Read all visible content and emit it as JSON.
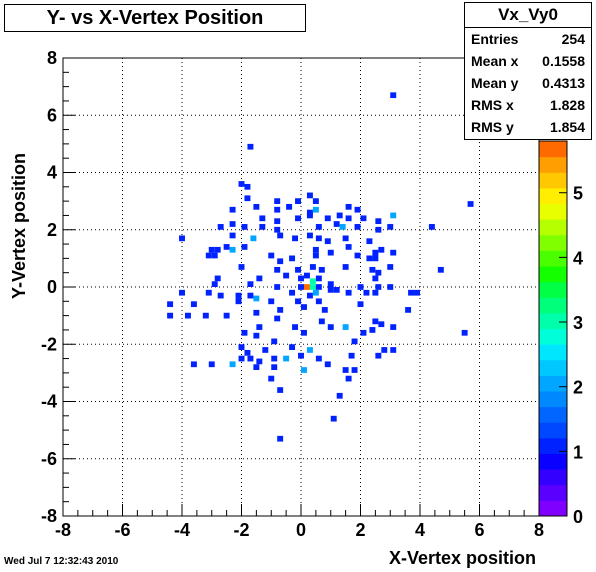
{
  "title": "Y- vs X-Vertex Position",
  "footer_timestamp": "Wed Jul  7 12:32:43 2010",
  "stats": {
    "name": "Vx_Vy0",
    "rows": [
      {
        "label": "Entries",
        "value": "254"
      },
      {
        "label": "Mean x",
        "value": "0.1558"
      },
      {
        "label": "Mean y",
        "value": "0.4313"
      },
      {
        "label": "RMS x",
        "value": "1.828"
      },
      {
        "label": "RMS y",
        "value": "1.854"
      }
    ]
  },
  "chart_data": {
    "type": "heatmap",
    "title": "Y- vs X-Vertex Position",
    "xlabel": "X-Vertex position",
    "ylabel": "Y-Vertex position",
    "xlim": [
      -8,
      8
    ],
    "ylim": [
      -8,
      8
    ],
    "bin_width": 0.2,
    "grid": true,
    "x_ticks": [
      "-8",
      "-6",
      "-4",
      "-2",
      "0",
      "2",
      "4",
      "6",
      "8"
    ],
    "y_ticks": [
      "-8",
      "-6",
      "-4",
      "-2",
      "0",
      "2",
      "4",
      "6",
      "8"
    ],
    "z_range": [
      0,
      5.8
    ],
    "z_ticks": [
      "0",
      "1",
      "2",
      "3",
      "4",
      "5"
    ],
    "palette": [
      "#7f00ff",
      "#5a00ff",
      "#3300ff",
      "#0a00ff",
      "#0022ff",
      "#0048ff",
      "#0066ff",
      "#0088ff",
      "#00a6ff",
      "#00c8ff",
      "#00e6ff",
      "#00ffd9",
      "#00ffab",
      "#00ff7a",
      "#00ff45",
      "#14ff00",
      "#4aff00",
      "#80ff00",
      "#b6ff00",
      "#e8ff00",
      "#ffee00",
      "#ffc800",
      "#ff9e00",
      "#ff6a00"
    ],
    "bins": [
      [
        3.1,
        6.7,
        1
      ],
      [
        -1.7,
        4.9,
        1
      ],
      [
        -2.0,
        3.6,
        1
      ],
      [
        -1.8,
        3.5,
        1
      ],
      [
        -1.8,
        3.1,
        1
      ],
      [
        -0.8,
        3.0,
        1
      ],
      [
        0.3,
        3.2,
        1
      ],
      [
        -0.1,
        3.0,
        1
      ],
      [
        0.5,
        3.0,
        1
      ],
      [
        5.7,
        2.9,
        1
      ],
      [
        -2.3,
        2.7,
        1
      ],
      [
        -1.5,
        2.8,
        1
      ],
      [
        -0.8,
        2.7,
        1
      ],
      [
        -0.4,
        2.8,
        1
      ],
      [
        0.3,
        2.6,
        1
      ],
      [
        0.5,
        2.7,
        2
      ],
      [
        1.6,
        2.8,
        1
      ],
      [
        1.9,
        2.7,
        1
      ],
      [
        -1.3,
        2.4,
        1
      ],
      [
        -0.8,
        2.3,
        1
      ],
      [
        -0.1,
        2.4,
        1
      ],
      [
        0.3,
        2.5,
        1
      ],
      [
        0.9,
        2.4,
        1
      ],
      [
        1.3,
        2.5,
        1
      ],
      [
        1.6,
        2.4,
        1
      ],
      [
        2.1,
        2.4,
        1
      ],
      [
        2.6,
        2.3,
        1
      ],
      [
        3.1,
        2.5,
        2
      ],
      [
        -2.7,
        2.1,
        1
      ],
      [
        -2.3,
        2.2,
        1
      ],
      [
        -1.9,
        2.1,
        1
      ],
      [
        -1.3,
        2.1,
        1
      ],
      [
        -0.8,
        2.0,
        1
      ],
      [
        0.6,
        2.1,
        1
      ],
      [
        1.2,
        2.2,
        1
      ],
      [
        1.4,
        2.1,
        2
      ],
      [
        1.9,
        2.1,
        1
      ],
      [
        2.6,
        2.0,
        1
      ],
      [
        3.0,
        2.1,
        1
      ],
      [
        4.4,
        2.1,
        1
      ],
      [
        -4.0,
        1.7,
        1
      ],
      [
        -2.3,
        1.8,
        1
      ],
      [
        -1.6,
        1.7,
        2
      ],
      [
        -0.7,
        1.8,
        1
      ],
      [
        -0.2,
        1.7,
        1
      ],
      [
        0.3,
        1.8,
        1
      ],
      [
        0.6,
        1.7,
        1
      ],
      [
        0.9,
        1.6,
        1
      ],
      [
        1.5,
        1.7,
        1
      ],
      [
        2.3,
        1.6,
        1
      ],
      [
        -3.0,
        1.3,
        1
      ],
      [
        -2.8,
        1.3,
        1
      ],
      [
        -2.5,
        1.4,
        1
      ],
      [
        -2.3,
        1.3,
        2
      ],
      [
        -1.9,
        1.4,
        1
      ],
      [
        0.5,
        1.3,
        1
      ],
      [
        1.0,
        1.2,
        1
      ],
      [
        1.6,
        1.4,
        1
      ],
      [
        2.5,
        1.2,
        1
      ],
      [
        2.7,
        1.3,
        1
      ],
      [
        3.1,
        1.2,
        1
      ],
      [
        -3.1,
        1.1,
        1
      ],
      [
        -2.9,
        1.1,
        1
      ],
      [
        -1.0,
        1.1,
        1
      ],
      [
        -0.7,
        0.9,
        1
      ],
      [
        -0.3,
        1.0,
        1
      ],
      [
        0.5,
        1.1,
        1
      ],
      [
        1.9,
        1.1,
        1
      ],
      [
        2.3,
        1.0,
        1
      ],
      [
        2.5,
        1.0,
        1
      ],
      [
        -2.0,
        0.7,
        1
      ],
      [
        -0.8,
        0.6,
        1
      ],
      [
        -0.1,
        0.6,
        1
      ],
      [
        0.4,
        0.7,
        1
      ],
      [
        0.7,
        0.6,
        1
      ],
      [
        1.5,
        0.7,
        1
      ],
      [
        2.4,
        0.6,
        1
      ],
      [
        2.6,
        0.5,
        1
      ],
      [
        3.0,
        0.7,
        1
      ],
      [
        4.7,
        0.6,
        1
      ],
      [
        -2.8,
        0.3,
        1
      ],
      [
        -1.4,
        0.3,
        1
      ],
      [
        -0.5,
        0.4,
        1
      ],
      [
        0.0,
        0.3,
        1
      ],
      [
        0.2,
        0.4,
        1
      ],
      [
        0.4,
        0.2,
        3
      ],
      [
        0.6,
        0.3,
        1
      ],
      [
        2.5,
        0.3,
        1
      ],
      [
        -2.9,
        0.1,
        1
      ],
      [
        -1.7,
        0.1,
        1
      ],
      [
        -0.8,
        0.0,
        1
      ],
      [
        0.0,
        0.0,
        1
      ],
      [
        0.2,
        0.0,
        6
      ],
      [
        0.4,
        0.0,
        3
      ],
      [
        0.6,
        0.0,
        1
      ],
      [
        1.0,
        0.1,
        1
      ],
      [
        1.2,
        -0.1,
        1
      ],
      [
        2.0,
        0.0,
        1
      ],
      [
        2.6,
        0.0,
        1
      ],
      [
        3.0,
        0.0,
        1
      ],
      [
        -4.0,
        -0.2,
        1
      ],
      [
        -3.1,
        -0.2,
        1
      ],
      [
        -2.7,
        -0.3,
        1
      ],
      [
        -2.1,
        -0.3,
        1
      ],
      [
        -1.7,
        -0.3,
        1
      ],
      [
        -1.5,
        -0.4,
        2
      ],
      [
        -0.3,
        -0.2,
        1
      ],
      [
        0.3,
        -0.3,
        1
      ],
      [
        0.5,
        -0.2,
        2
      ],
      [
        1.0,
        -0.1,
        1
      ],
      [
        1.6,
        -0.2,
        1
      ],
      [
        2.2,
        -0.2,
        1
      ],
      [
        2.5,
        -0.2,
        1
      ],
      [
        3.7,
        -0.2,
        1
      ],
      [
        3.9,
        -0.2,
        1
      ],
      [
        -4.4,
        -0.6,
        1
      ],
      [
        -3.6,
        -0.6,
        1
      ],
      [
        -2.1,
        -0.5,
        1
      ],
      [
        -1.0,
        -0.5,
        1
      ],
      [
        -0.1,
        -0.5,
        1
      ],
      [
        0.6,
        -0.5,
        1
      ],
      [
        2.0,
        -0.6,
        1
      ],
      [
        -4.4,
        -1.0,
        1
      ],
      [
        -3.8,
        -1.0,
        1
      ],
      [
        -3.2,
        -1.0,
        1
      ],
      [
        -2.5,
        -1.0,
        1
      ],
      [
        -1.5,
        -0.9,
        1
      ],
      [
        -0.7,
        -0.8,
        1
      ],
      [
        0.1,
        -0.7,
        1
      ],
      [
        0.8,
        -0.8,
        1
      ],
      [
        3.6,
        -0.8,
        1
      ],
      [
        -1.4,
        -1.4,
        1
      ],
      [
        -0.8,
        -1.1,
        1
      ],
      [
        -0.2,
        -1.4,
        1
      ],
      [
        0.7,
        -1.2,
        1
      ],
      [
        1.0,
        -1.4,
        1
      ],
      [
        2.5,
        -1.2,
        1
      ],
      [
        2.7,
        -1.3,
        1
      ],
      [
        5.5,
        -1.6,
        1
      ],
      [
        -1.9,
        -1.6,
        1
      ],
      [
        -1.5,
        -1.7,
        1
      ],
      [
        0.1,
        -1.6,
        1
      ],
      [
        1.5,
        -1.4,
        2
      ],
      [
        2.1,
        -1.6,
        1
      ],
      [
        2.4,
        -1.5,
        1
      ],
      [
        3.1,
        -1.4,
        1
      ],
      [
        -2.0,
        -2.1,
        1
      ],
      [
        -1.8,
        -2.3,
        1
      ],
      [
        -1.2,
        -2.2,
        1
      ],
      [
        -0.9,
        -1.9,
        1
      ],
      [
        -0.3,
        -2.1,
        1
      ],
      [
        0.3,
        -2.2,
        2
      ],
      [
        1.8,
        -1.9,
        1
      ],
      [
        2.8,
        -2.2,
        1
      ],
      [
        3.1,
        -2.2,
        1
      ],
      [
        -3.6,
        -2.7,
        1
      ],
      [
        -3.0,
        -2.7,
        1
      ],
      [
        -2.3,
        -2.7,
        2
      ],
      [
        -2.0,
        -2.5,
        1
      ],
      [
        -1.7,
        -2.5,
        1
      ],
      [
        -1.4,
        -2.6,
        1
      ],
      [
        -0.9,
        -2.5,
        1
      ],
      [
        -0.5,
        -2.5,
        2
      ],
      [
        0.0,
        -2.4,
        1
      ],
      [
        0.6,
        -2.5,
        1
      ],
      [
        0.9,
        -2.7,
        1
      ],
      [
        1.7,
        -2.4,
        1
      ],
      [
        2.6,
        -2.4,
        1
      ],
      [
        -1.5,
        -2.8,
        1
      ],
      [
        -0.9,
        -2.8,
        1
      ],
      [
        0.1,
        -2.9,
        2
      ],
      [
        1.5,
        -2.9,
        1
      ],
      [
        1.8,
        -2.9,
        1
      ],
      [
        -1.0,
        -3.2,
        1
      ],
      [
        1.6,
        -3.2,
        1
      ],
      [
        -0.7,
        -3.6,
        1
      ],
      [
        1.3,
        -3.8,
        1
      ],
      [
        1.1,
        -4.6,
        1
      ],
      [
        -0.7,
        -5.3,
        1
      ]
    ]
  },
  "colors": {
    "frame": "#000000",
    "grid": "#000000",
    "background": "#ffffff"
  }
}
